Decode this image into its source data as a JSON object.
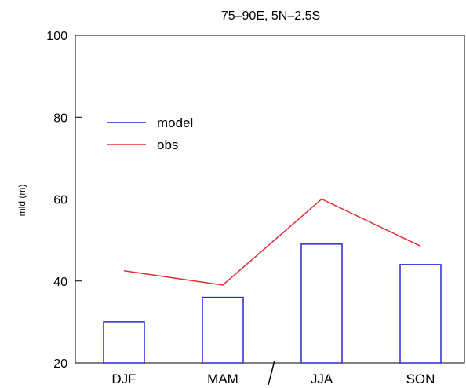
{
  "chart_data": {
    "type": "bar",
    "title": "75–90E, 5N–2.5S",
    "xlabel": "",
    "ylabel": "mld (m)",
    "ylim": [
      20,
      100
    ],
    "yticks": [
      20,
      40,
      60,
      80,
      100
    ],
    "categories": [
      "DJF",
      "MAM",
      "JJA",
      "SON"
    ],
    "grid": false,
    "legend_position": "upper-left",
    "series": [
      {
        "name": "model",
        "type": "bar",
        "color": "#2a2ad0",
        "values": [
          30,
          36,
          49,
          44
        ]
      },
      {
        "name": "obs",
        "type": "line",
        "color": "#e03030",
        "values": [
          42.5,
          39,
          60,
          48.5
        ]
      }
    ]
  }
}
